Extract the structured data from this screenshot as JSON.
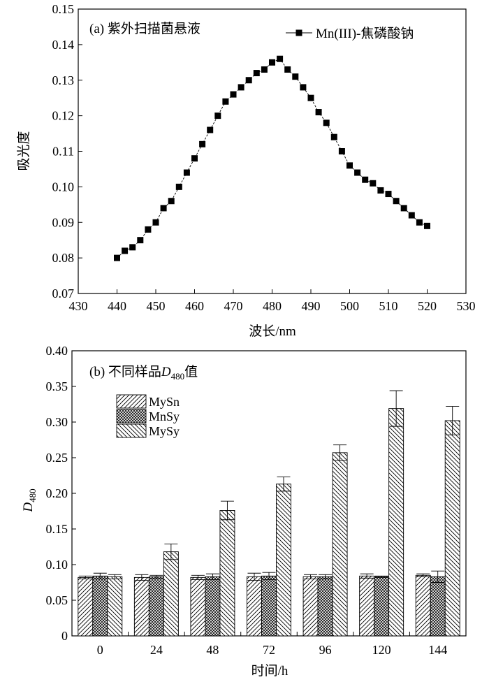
{
  "chart_data": [
    {
      "type": "line",
      "title": "(a) 紫外扫描菌悬液",
      "xlabel": "波长/nm",
      "ylabel": "吸光度",
      "xlim": [
        430,
        530
      ],
      "ylim": [
        0.07,
        0.15
      ],
      "x_ticks": [
        "430",
        "440",
        "450",
        "460",
        "470",
        "480",
        "490",
        "500",
        "510",
        "520",
        "530"
      ],
      "y_ticks": [
        "0.07",
        "0.08",
        "0.09",
        "0.10",
        "0.11",
        "0.12",
        "0.13",
        "0.14",
        "0.15"
      ],
      "grid": false,
      "legend_position": "top-right",
      "series": [
        {
          "name": "Mn(III)-焦磷酸钠",
          "color": "#000000",
          "marker": "square",
          "x": [
            440,
            442,
            444,
            446,
            448,
            450,
            452,
            454,
            456,
            458,
            460,
            462,
            464,
            466,
            468,
            470,
            472,
            474,
            476,
            478,
            480,
            482,
            484,
            486,
            488,
            490,
            492,
            494,
            496,
            498,
            500,
            502,
            504,
            506,
            508,
            510,
            512,
            514,
            516,
            518,
            520
          ],
          "y": [
            0.08,
            0.082,
            0.083,
            0.085,
            0.088,
            0.09,
            0.094,
            0.096,
            0.1,
            0.104,
            0.108,
            0.112,
            0.116,
            0.12,
            0.124,
            0.126,
            0.128,
            0.13,
            0.132,
            0.133,
            0.135,
            0.136,
            0.133,
            0.131,
            0.128,
            0.125,
            0.121,
            0.118,
            0.114,
            0.11,
            0.106,
            0.104,
            0.102,
            0.101,
            0.099,
            0.098,
            0.096,
            0.094,
            0.092,
            0.09,
            0.089
          ]
        }
      ]
    },
    {
      "type": "bar",
      "title_prefix": "(b) 不同样品",
      "title_var": "D",
      "title_sub": "480",
      "title_suffix": "值",
      "xlabel": "时间/h",
      "ylabel_var": "D",
      "ylabel_sub": "480",
      "ylim": [
        0,
        0.4
      ],
      "y_ticks": [
        "0",
        "0.05",
        "0.10",
        "0.15",
        "0.20",
        "0.25",
        "0.30",
        "0.35",
        "0.40"
      ],
      "categories": [
        "0",
        "24",
        "48",
        "72",
        "96",
        "120",
        "144"
      ],
      "grid": false,
      "legend_position": "top-left",
      "series": [
        {
          "name": "MySn",
          "pattern": "diag-up",
          "values": [
            0.082,
            0.082,
            0.082,
            0.083,
            0.083,
            0.084,
            0.085
          ],
          "errors": [
            0.002,
            0.004,
            0.003,
            0.005,
            0.003,
            0.003,
            0.002
          ]
        },
        {
          "name": "MnSy",
          "pattern": "crosshatch",
          "values": [
            0.084,
            0.083,
            0.083,
            0.084,
            0.083,
            0.083,
            0.083
          ],
          "errors": [
            0.004,
            0.002,
            0.004,
            0.005,
            0.003,
            0.001,
            0.008
          ]
        },
        {
          "name": "MySy",
          "pattern": "diag-down",
          "values": [
            0.083,
            0.118,
            0.176,
            0.213,
            0.257,
            0.319,
            0.302
          ],
          "errors": [
            0.003,
            0.011,
            0.013,
            0.01,
            0.011,
            0.025,
            0.02
          ]
        }
      ]
    }
  ]
}
